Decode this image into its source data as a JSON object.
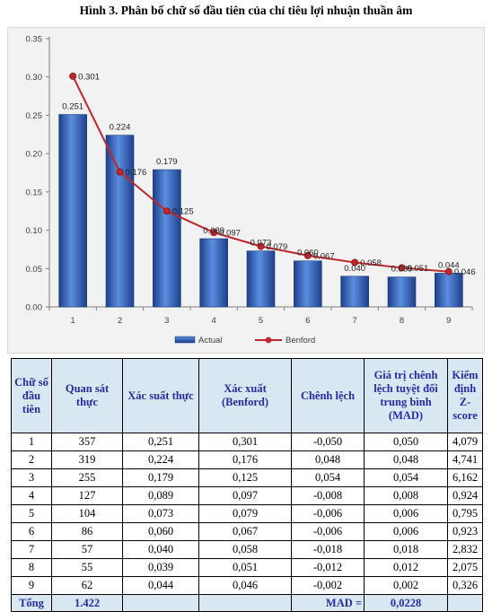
{
  "title": "Hình 3. Phân bố chữ số đầu tiên của chỉ tiêu lợi nhuận thuần âm",
  "chart_data": {
    "type": "bar",
    "categories": [
      "1",
      "2",
      "3",
      "4",
      "5",
      "6",
      "7",
      "8",
      "9"
    ],
    "series": [
      {
        "name": "Actual",
        "type": "bar",
        "color": "#3366cc",
        "values": [
          0.251,
          0.224,
          0.179,
          0.089,
          0.073,
          0.06,
          0.04,
          0.039,
          0.044
        ],
        "labels": [
          "0.251",
          "0.224",
          "0.179",
          "0.089",
          "0.073",
          "0.060",
          "0.040",
          "0.039",
          "0.044"
        ]
      },
      {
        "name": "Benford",
        "type": "line",
        "color": "#c0272d",
        "values": [
          0.301,
          0.176,
          0.125,
          0.097,
          0.079,
          0.067,
          0.058,
          0.051,
          0.046
        ],
        "labels": [
          "0.301",
          "0.176",
          "0.125",
          "0.097",
          "0.079",
          "0.067",
          "0.058",
          "0.051",
          "0.046"
        ]
      }
    ],
    "ylim": [
      0,
      0.35
    ],
    "yticks": [
      "0.00",
      "0.05",
      "0.10",
      "0.15",
      "0.20",
      "0.25",
      "0.30",
      "0.35"
    ],
    "grid": false,
    "legend_position": "bottom"
  },
  "table": {
    "headers": [
      "Chữ số đầu tiên",
      "Quan sát thực",
      "Xác suất thực",
      "Xác xuất (Benford)",
      "Chênh lệch",
      "Giá trị chênh lệch tuyệt đối trung bình (MAD)",
      "Kiểm định Z-score"
    ],
    "rows": [
      [
        "1",
        "357",
        "0,251",
        "0,301",
        "-0,050",
        "0,050",
        "4,079"
      ],
      [
        "2",
        "319",
        "0,224",
        "0,176",
        "0,048",
        "0,048",
        "4,741"
      ],
      [
        "3",
        "255",
        "0,179",
        "0,125",
        "0,054",
        "0,054",
        "6,162"
      ],
      [
        "4",
        "127",
        "0,089",
        "0,097",
        "-0,008",
        "0,008",
        "0,924"
      ],
      [
        "5",
        "104",
        "0,073",
        "0,079",
        "-0,006",
        "0,006",
        "0,795"
      ],
      [
        "6",
        "86",
        "0,060",
        "0,067",
        "-0,006",
        "0,006",
        "0,923"
      ],
      [
        "7",
        "57",
        "0,040",
        "0,058",
        "-0,018",
        "0,018",
        "2,832"
      ],
      [
        "8",
        "55",
        "0,039",
        "0,051",
        "-0,012",
        "0,012",
        "2,075"
      ],
      [
        "9",
        "62",
        "0,044",
        "0,046",
        "-0,002",
        "0,002",
        "0,326"
      ]
    ],
    "total": {
      "label": "Tổng",
      "count": "1.422",
      "mad_label": "MAD =",
      "mad_value": "0,0228"
    }
  }
}
